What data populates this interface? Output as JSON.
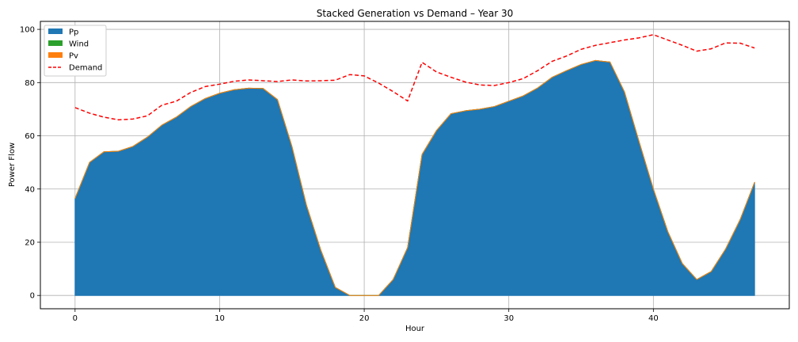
{
  "chart_data": {
    "type": "area",
    "title": "Stacked Generation vs Demand – Year 30",
    "xlabel": "Hour",
    "ylabel": "Power Flow",
    "xlim": [
      -2.4,
      49.4
    ],
    "ylim": [
      -5,
      103
    ],
    "xticks": [
      0,
      10,
      20,
      30,
      40
    ],
    "yticks": [
      0,
      20,
      40,
      60,
      80,
      100
    ],
    "grid": true,
    "legend_position": "upper-left",
    "x": [
      0,
      1,
      2,
      3,
      4,
      5,
      6,
      7,
      8,
      9,
      10,
      11,
      12,
      13,
      14,
      15,
      16,
      17,
      18,
      19,
      20,
      21,
      22,
      23,
      24,
      25,
      26,
      27,
      28,
      29,
      30,
      31,
      32,
      33,
      34,
      35,
      36,
      37,
      38,
      39,
      40,
      41,
      42,
      43,
      44,
      45,
      46,
      47
    ],
    "series": [
      {
        "name": "Pp",
        "kind": "stacked-area",
        "color": "#1f77b4",
        "values": [
          36.5,
          50,
          54,
          54.2,
          56,
          59.5,
          64,
          67,
          71,
          74,
          76,
          77.3,
          77.9,
          77.8,
          73.6,
          56,
          34,
          17,
          3,
          0,
          0,
          0,
          6,
          18,
          53,
          62,
          68.3,
          69.4,
          70,
          71,
          73,
          75,
          78,
          82,
          84.5,
          86.8,
          88.3,
          87.7,
          76.5,
          58,
          40,
          24,
          12,
          6,
          9,
          17.5,
          28.5,
          42.5
        ]
      },
      {
        "name": "Wind",
        "kind": "stacked-area",
        "color": "#2ca02c",
        "values": [
          0,
          0,
          0,
          0,
          0,
          0,
          0,
          0,
          0,
          0,
          0,
          0,
          0,
          0,
          0,
          0,
          0,
          0,
          0,
          0,
          0,
          0,
          0,
          0,
          0,
          0,
          0,
          0,
          0,
          0,
          0,
          0,
          0,
          0,
          0,
          0,
          0,
          0,
          0,
          0,
          0,
          0,
          0,
          0,
          0,
          0,
          0,
          0
        ]
      },
      {
        "name": "Pv",
        "kind": "stacked-area",
        "color": "#ff7f0e",
        "values": [
          0,
          0,
          0,
          0,
          0,
          0,
          0,
          0,
          0,
          0,
          0,
          0,
          0,
          0,
          0,
          0,
          0,
          0,
          0,
          0,
          0,
          0,
          0,
          0,
          0,
          0,
          0,
          0,
          0,
          0,
          0,
          0,
          0,
          0,
          0,
          0,
          0,
          0,
          0,
          0,
          0,
          0,
          0,
          0,
          0,
          0,
          0,
          0
        ]
      },
      {
        "name": "Demand",
        "kind": "dashed-line",
        "color": "#ff0000",
        "values": [
          70.6,
          68.5,
          67,
          66,
          66.3,
          67.5,
          71.5,
          73,
          76.3,
          78.5,
          79.4,
          80.5,
          81,
          80.7,
          80.4,
          81,
          80.6,
          80.7,
          80.9,
          83,
          82.5,
          79.8,
          76.6,
          73.1,
          87.6,
          84,
          82,
          80.2,
          79.1,
          78.9,
          80,
          81.5,
          84.5,
          88,
          90,
          92.5,
          94,
          95,
          96,
          96.8,
          98,
          96,
          94,
          91.8,
          92.7,
          94.9,
          94.8,
          93
        ]
      }
    ]
  }
}
